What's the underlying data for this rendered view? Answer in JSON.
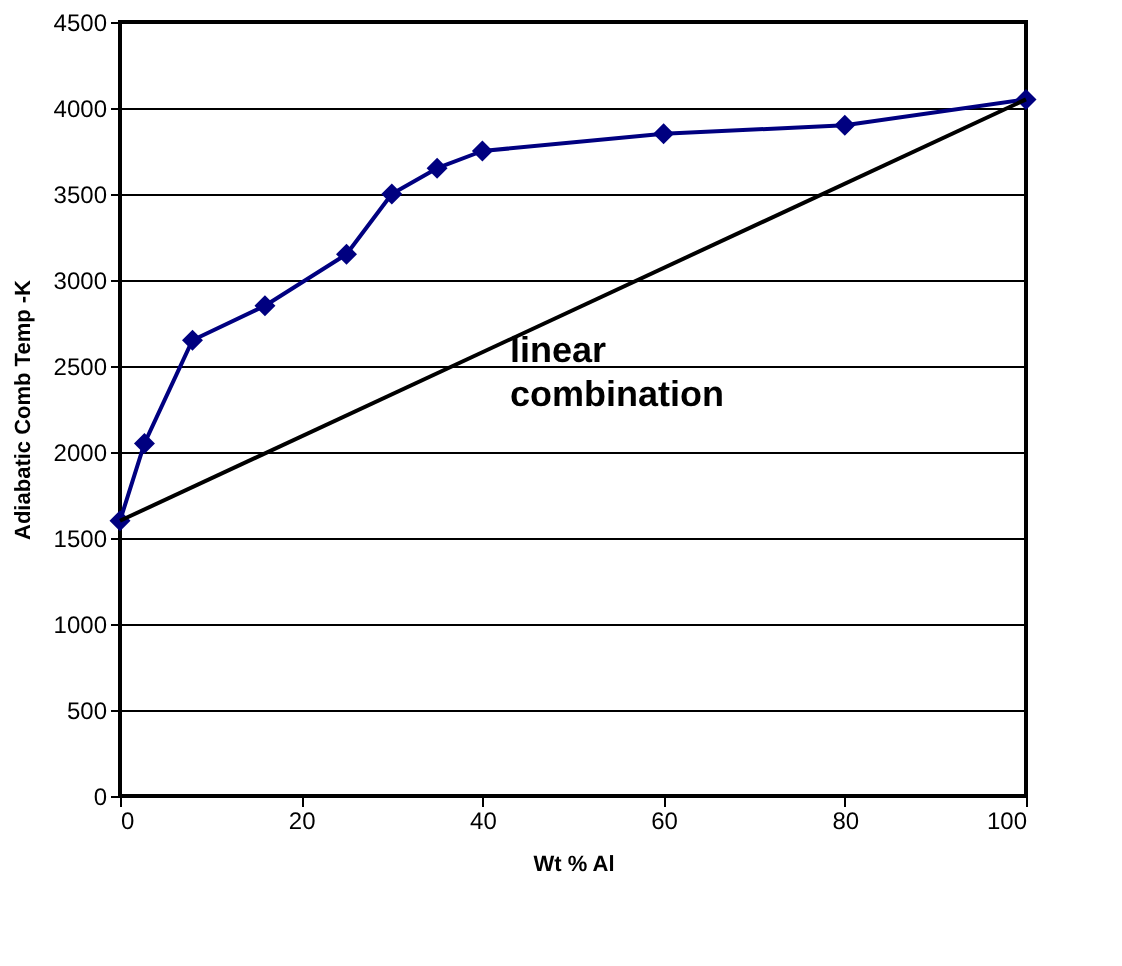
{
  "chart_data": {
    "type": "line",
    "xlabel": "Wt % Al",
    "ylabel": "Adiabatic Comb Temp -K",
    "xlim": [
      0,
      100
    ],
    "xticks": [
      0,
      20,
      40,
      60,
      80,
      100
    ],
    "ylim": [
      0,
      4500
    ],
    "yticks": [
      0,
      500,
      1000,
      1500,
      2000,
      2500,
      3000,
      3500,
      4000,
      4500
    ],
    "grid": "y",
    "series": [
      {
        "color": "#000080",
        "marker": "diamond",
        "x": [
          0,
          2.7,
          8,
          16,
          25,
          30,
          35,
          40,
          60,
          80,
          100
        ],
        "values": [
          1600,
          2050,
          2650,
          2850,
          3150,
          3500,
          3650,
          3750,
          3850,
          3900,
          4050
        ]
      },
      {
        "color": "#000000",
        "marker": "none",
        "x": [
          0,
          100
        ],
        "values": [
          1600,
          4050
        ]
      }
    ],
    "annotations": [
      "linear combination"
    ]
  }
}
